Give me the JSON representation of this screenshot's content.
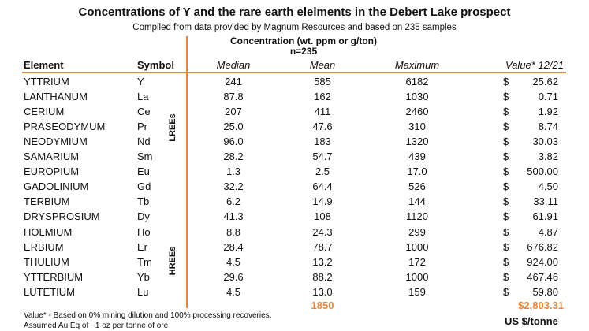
{
  "title": "Concentrations of Y and the rare earth elelments in the Debert Lake prospect",
  "subtitle": "Compiled from data provided by Magnum Resources and based on 235 samples",
  "concentration_header": {
    "line1": "Concentration (wt. ppm or g/ton)",
    "line2": "n=235"
  },
  "columns": {
    "element": "Element",
    "symbol": "Symbol",
    "median": "Median",
    "mean": "Mean",
    "maximum": "Maximum",
    "value": "Value* 12/21"
  },
  "groups": {
    "lree": "LREEs",
    "hree": "HREEs"
  },
  "rows": [
    {
      "element": "YTTRIUM",
      "symbol": "Y",
      "median": "241",
      "mean": "585",
      "maximum": "6182",
      "dollar": "$",
      "value": "25.62"
    },
    {
      "element": "LANTHANUM",
      "symbol": "La",
      "median": "87.8",
      "mean": "162",
      "maximum": "1030",
      "dollar": "$",
      "value": "0.71"
    },
    {
      "element": "CERIUM",
      "symbol": "Ce",
      "median": "207",
      "mean": "411",
      "maximum": "2460",
      "dollar": "$",
      "value": "1.92"
    },
    {
      "element": "PRASEODYMUM",
      "symbol": "Pr",
      "median": "25.0",
      "mean": "47.6",
      "maximum": "310",
      "dollar": "$",
      "value": "8.74"
    },
    {
      "element": "NEODYMIUM",
      "symbol": "Nd",
      "median": "96.0",
      "mean": "183",
      "maximum": "1320",
      "dollar": "$",
      "value": "30.03"
    },
    {
      "element": "SAMARIUM",
      "symbol": "Sm",
      "median": "28.2",
      "mean": "54.7",
      "maximum": "439",
      "dollar": "$",
      "value": "3.82"
    },
    {
      "element": "EUROPIUM",
      "symbol": "Eu",
      "median": "1.3",
      "mean": "2.5",
      "maximum": "17.0",
      "dollar": "$",
      "value": "500.00"
    },
    {
      "element": "GADOLINIUM",
      "symbol": "Gd",
      "median": "32.2",
      "mean": "64.4",
      "maximum": "526",
      "dollar": "$",
      "value": "4.50"
    },
    {
      "element": "TERBIUM",
      "symbol": "Tb",
      "median": "6.2",
      "mean": "14.9",
      "maximum": "144",
      "dollar": "$",
      "value": "33.11"
    },
    {
      "element": "DRYSPROSIUM",
      "symbol": "Dy",
      "median": "41.3",
      "mean": "108",
      "maximum": "1120",
      "dollar": "$",
      "value": "61.91"
    },
    {
      "element": "HOLMIUM",
      "symbol": "Ho",
      "median": "8.8",
      "mean": "24.3",
      "maximum": "299",
      "dollar": "$",
      "value": "4.87"
    },
    {
      "element": "ERBIUM",
      "symbol": "Er",
      "median": "28.4",
      "mean": "78.7",
      "maximum": "1000",
      "dollar": "$",
      "value": "676.82"
    },
    {
      "element": "THULIUM",
      "symbol": "Tm",
      "median": "4.5",
      "mean": "13.2",
      "maximum": "172",
      "dollar": "$",
      "value": "924.00"
    },
    {
      "element": "YTTERBIUM",
      "symbol": "Yb",
      "median": "29.6",
      "mean": "88.2",
      "maximum": "1000",
      "dollar": "$",
      "value": "467.46"
    },
    {
      "element": "LUTETIUM",
      "symbol": "Lu",
      "median": "4.5",
      "mean": "13.0",
      "maximum": "159",
      "dollar": "$",
      "value": "59.80"
    }
  ],
  "totals": {
    "mean": "1850",
    "value": "$2,803.31"
  },
  "footnotes": {
    "line1": "Value* - Based on 0% mining dilution and 100% processing recoveries.",
    "line2": "Assumed Au Eq of ~1 oz per tonne of ore"
  },
  "unit_label": "US $/tonne",
  "accent_color": "#e8873c"
}
